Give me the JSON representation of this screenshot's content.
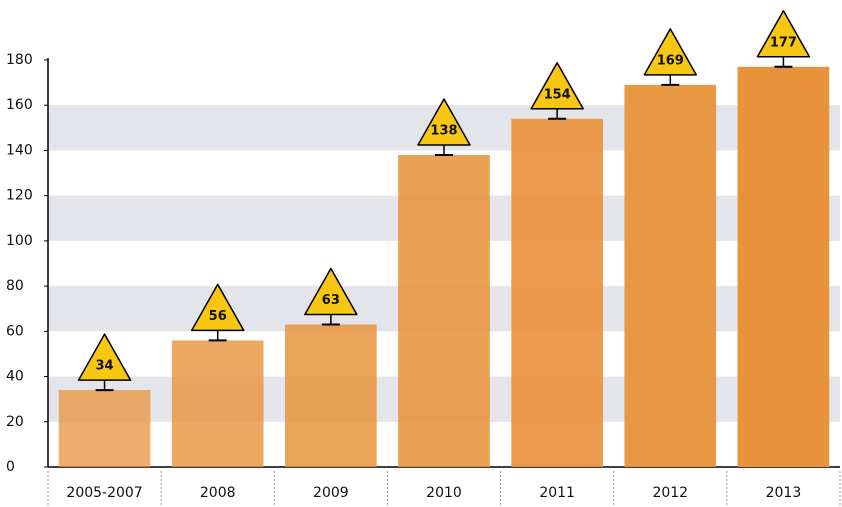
{
  "chart_data": {
    "type": "bar",
    "categories": [
      "2005-2007",
      "2008",
      "2009",
      "2010",
      "2011",
      "2012",
      "2013"
    ],
    "values": [
      34,
      56,
      63,
      138,
      154,
      169,
      177
    ],
    "color": "#e8923a",
    "ylim": [
      0,
      180
    ],
    "yticks": [
      0,
      20,
      40,
      60,
      80,
      100,
      120,
      140,
      160,
      180
    ],
    "grid": true
  }
}
